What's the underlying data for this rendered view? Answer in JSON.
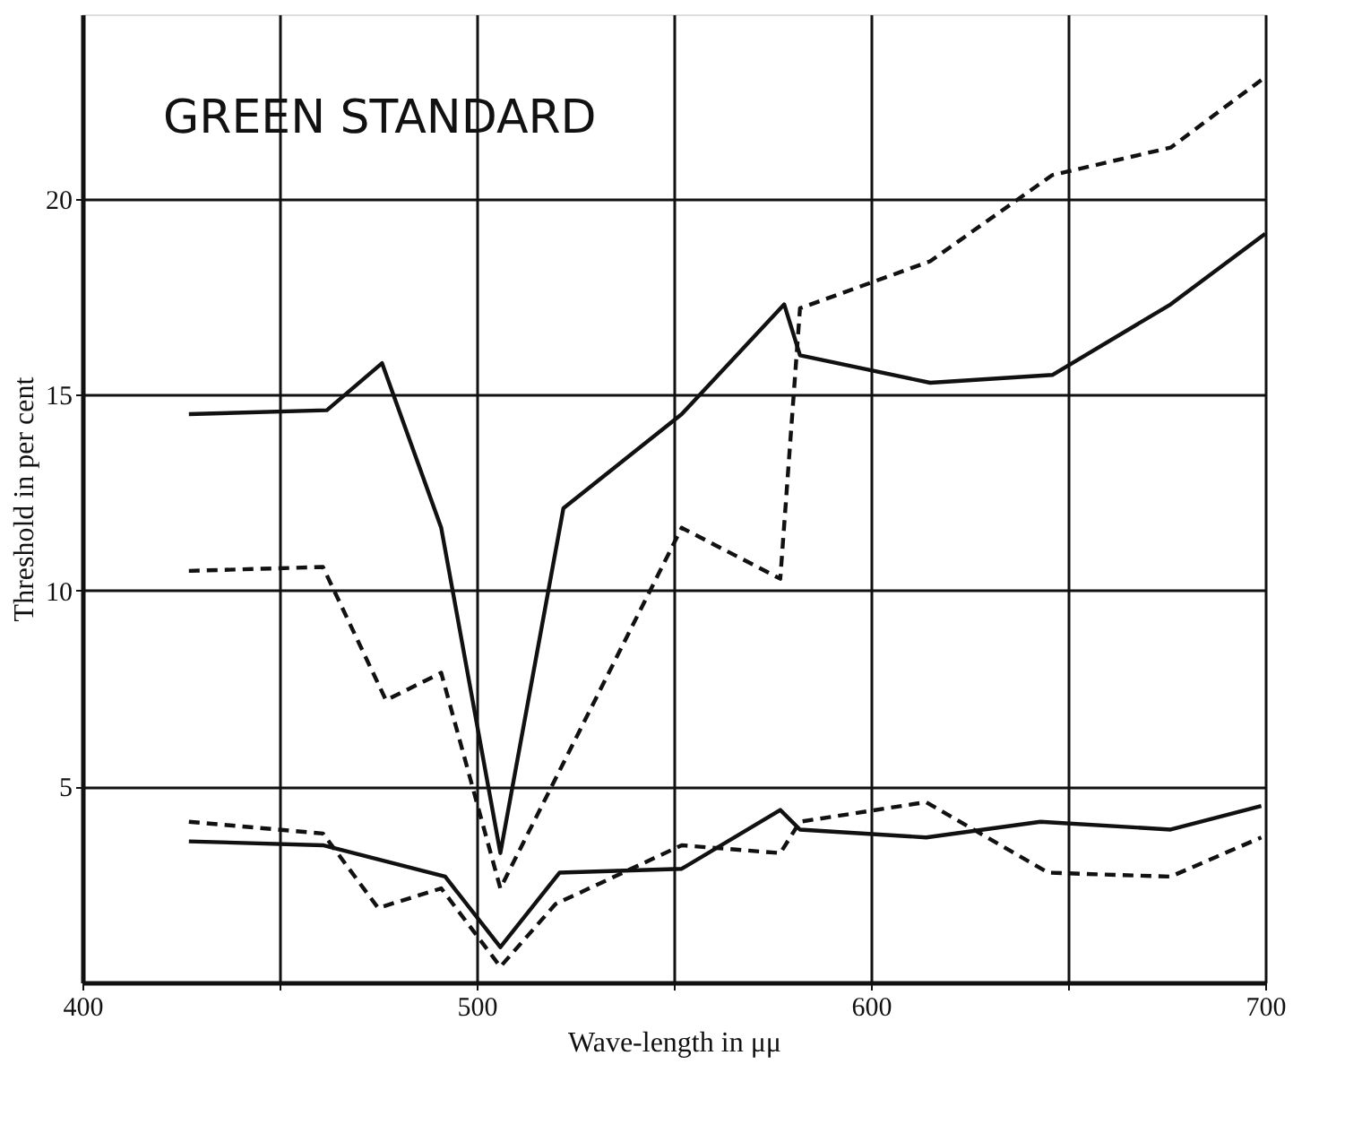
{
  "chart_data": {
    "type": "line",
    "title": "GREEN STANDARD",
    "xlabel": "Wave-length in μμ",
    "ylabel": "Threshold in per cent",
    "xlim": [
      400,
      700
    ],
    "ylim": [
      0,
      24.7
    ],
    "xticks": [
      400,
      {
        "value": 450,
        "label": null
      },
      500,
      {
        "value": 550,
        "label": null
      },
      600,
      {
        "value": 650,
        "label": null
      },
      700
    ],
    "yticks": [
      5,
      10,
      15,
      20
    ],
    "grid": true,
    "legend": false,
    "marker": "none",
    "series": [
      {
        "color": "#111111",
        "line_style": "solid",
        "x": [
          427,
          462,
          476,
          491,
          506,
          522,
          552,
          578,
          582,
          615,
          646,
          676,
          700
        ],
        "values": [
          14.5,
          14.6,
          15.8,
          11.6,
          3.3,
          12.1,
          14.5,
          17.3,
          16.0,
          15.3,
          15.5,
          17.3,
          19.1
        ]
      },
      {
        "color": "#111111",
        "line_style": "dashed",
        "x": [
          427,
          461,
          477,
          491,
          506,
          552,
          577,
          582,
          615,
          646,
          676,
          700
        ],
        "values": [
          10.5,
          10.6,
          7.2,
          7.9,
          2.4,
          11.6,
          10.3,
          17.2,
          18.4,
          20.6,
          21.3,
          23.1
        ]
      },
      {
        "color": "#111111",
        "line_style": "solid",
        "x": [
          427,
          461,
          492,
          506,
          521,
          552,
          577,
          582,
          614,
          643,
          676,
          699
        ],
        "values": [
          3.6,
          3.5,
          2.7,
          0.9,
          2.8,
          2.9,
          4.4,
          3.9,
          3.7,
          4.1,
          3.9,
          4.5
        ]
      },
      {
        "color": "#111111",
        "line_style": "dashed",
        "x": [
          427,
          461,
          475,
          491,
          506,
          520,
          552,
          577,
          582,
          614,
          645,
          676,
          699
        ],
        "values": [
          4.1,
          3.8,
          1.9,
          2.4,
          0.4,
          2.0,
          3.5,
          3.3,
          4.1,
          4.6,
          2.8,
          2.7,
          3.7
        ]
      }
    ]
  }
}
